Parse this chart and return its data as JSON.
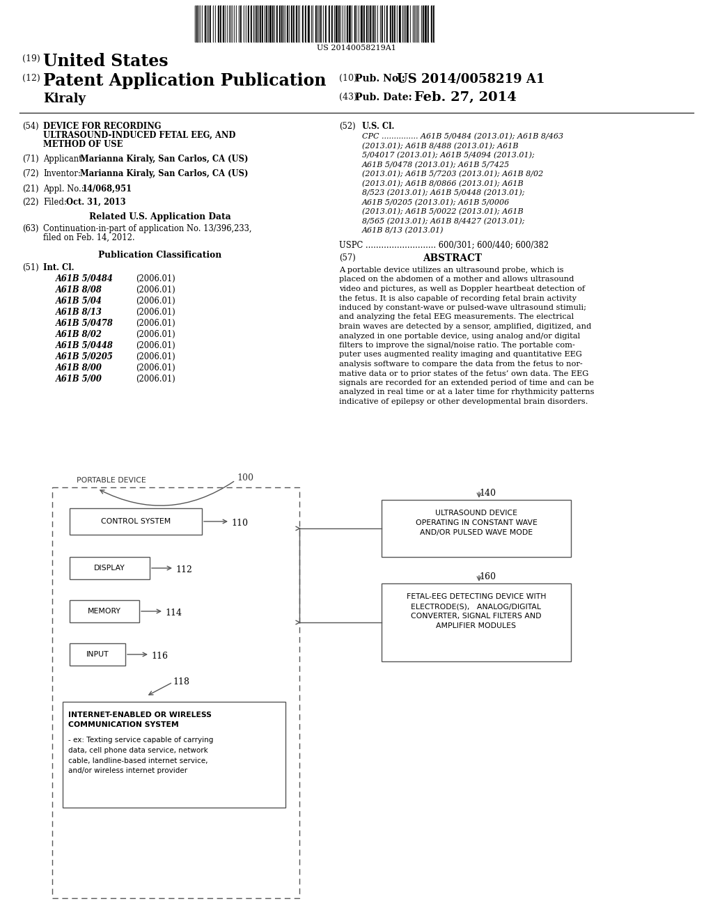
{
  "bg_color": "#ffffff",
  "barcode_text": "US 20140058219A1",
  "header": {
    "num19": "(19)",
    "title19": "United States",
    "num12": "(12)",
    "title12": "Patent Application Publication",
    "author": "Kiraly",
    "num10": "(10)",
    "pubno_label": "Pub. No.:",
    "pubno": "US 2014/0058219 A1",
    "num43": "(43)",
    "pubdate_label": "Pub. Date:",
    "pubdate": "Feb. 27, 2014"
  },
  "left_col": {
    "item54_lines": [
      "DEVICE FOR RECORDING",
      "ULTRASOUND-INDUCED FETAL EEG, AND",
      "METHOD OF USE"
    ],
    "item71_val": "Marianna Kiraly, San Carlos, CA (US)",
    "item72_val": "Marianna Kiraly, San Carlos, CA (US)",
    "item21_val": "14/068,951",
    "item22_val": "Oct. 31, 2013",
    "related_title": "Related U.S. Application Data",
    "item63_line1": "Continuation-in-part of application No. 13/396,233,",
    "item63_line2": "filed on Feb. 14, 2012.",
    "pub_class_title": "Publication Classification",
    "int_cl_entries": [
      [
        "A61B 5/0484",
        "(2006.01)"
      ],
      [
        "A61B 8/08",
        "(2006.01)"
      ],
      [
        "A61B 5/04",
        "(2006.01)"
      ],
      [
        "A61B 8/13",
        "(2006.01)"
      ],
      [
        "A61B 5/0478",
        "(2006.01)"
      ],
      [
        "A61B 8/02",
        "(2006.01)"
      ],
      [
        "A61B 5/0448",
        "(2006.01)"
      ],
      [
        "A61B 5/0205",
        "(2006.01)"
      ],
      [
        "A61B 8/00",
        "(2006.01)"
      ],
      [
        "A61B 5/00",
        "(2006.01)"
      ]
    ]
  },
  "right_col": {
    "cpc_lines": [
      "CPC ............... A61B 5/0484 (2013.01); A61B 8/463",
      "(2013.01); A61B 8/488 (2013.01); A61B",
      "5/04017 (2013.01); A61B 5/4094 (2013.01);",
      "A61B 5/0478 (2013.01); A61B 5/7425",
      "(2013.01); A61B 5/7203 (2013.01); A61B 8/02",
      "(2013.01); A61B 8/0866 (2013.01); A61B",
      "8/523 (2013.01); A61B 5/0448 (2013.01);",
      "A61B 5/0205 (2013.01); A61B 5/0006",
      "(2013.01); A61B 5/0022 (2013.01); A61B",
      "8/565 (2013.01); A61B 8/4427 (2013.01);",
      "A61B 8/13 (2013.01)"
    ],
    "uspc_text": "USPC ........................... 600/301; 600/440; 600/382",
    "abstract_lines": [
      "A portable device utilizes an ultrasound probe, which is",
      "placed on the abdomen of a mother and allows ultrasound",
      "video and pictures, as well as Doppler heartbeat detection of",
      "the fetus. It is also capable of recording fetal brain activity",
      "induced by constant-wave or pulsed-wave ultrasound stimuli;",
      "and analyzing the fetal EEG measurements. The electrical",
      "brain waves are detected by a sensor, amplified, digitized, and",
      "analyzed in one portable device, using analog and/or digital",
      "filters to improve the signal/noise ratio. The portable com-",
      "puter uses augmented reality imaging and quantitative EEG",
      "analysis software to compare the data from the fetus to nor-",
      "mative data or to prior states of the fetus’ own data. The EEG",
      "signals are recorded for an extended period of time and can be",
      "analyzed in real time or at a later time for rhythmicity patterns",
      "indicative of epilepsy or other developmental brain disorders."
    ]
  },
  "diagram": {
    "portable_device_label": "PORTABLE DEVICE",
    "label_100": "100",
    "label_110": "110",
    "label_112": "112",
    "label_114": "114",
    "label_116": "116",
    "label_118": "118",
    "label_140": "140",
    "label_160": "160",
    "box_control": "CONTROL SYSTEM",
    "box_display": "DISPLAY",
    "box_memory": "MEMORY",
    "box_input": "INPUT",
    "box_internet_line1": "INTERNET-ENABLED OR WIRELESS",
    "box_internet_line2": "COMMUNICATION SYSTEM",
    "box_internet_desc": "- ex: Texting service capable of carrying\ndata, cell phone data service, network\ncable, landline-based internet service,\nand/or wireless internet provider",
    "box_ultrasound_line1": "ULTRASOUND DEVICE",
    "box_ultrasound_line2": "OPERATING IN CONSTANT WAVE",
    "box_ultrasound_line3": "AND/OR PULSED WAVE MODE",
    "box_fetal_line1": "FETAL-EEG DETECTING DEVICE WITH",
    "box_fetal_line2": "ELECTRODE(S),   ANALOG/DIGITAL",
    "box_fetal_line3": "CONVERTER, SIGNAL FILTERS AND",
    "box_fetal_line4": "AMPLIFIER MODULES"
  }
}
